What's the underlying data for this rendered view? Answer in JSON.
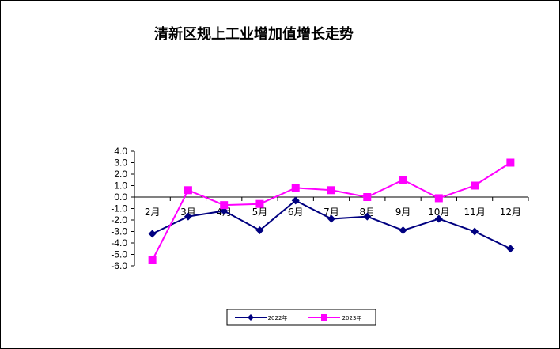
{
  "chart_data": {
    "type": "line",
    "title": "清新区规上工业增加值增长走势",
    "xlabel": "",
    "ylabel": "",
    "categories": [
      "2月",
      "3月",
      "4月",
      "5月",
      "6月",
      "7月",
      "8月",
      "9月",
      "10月",
      "11月",
      "12月"
    ],
    "y_ticks": [
      "4.0",
      "3.0",
      "2.0",
      "1.0",
      "0.0",
      "-1.0",
      "-2.0",
      "-3.0",
      "-4.0",
      "-5.0",
      "-6.0"
    ],
    "ylim": [
      -6.0,
      4.0
    ],
    "grid": false,
    "legend_position": "bottom",
    "series": [
      {
        "name": "2022年",
        "color": "#000080",
        "marker": "diamond",
        "values": [
          -3.2,
          -1.7,
          -1.2,
          -2.9,
          -0.3,
          -1.9,
          -1.7,
          -2.9,
          -1.9,
          -3.0,
          -4.5
        ]
      },
      {
        "name": "2023年",
        "color": "#FF00FF",
        "marker": "square",
        "values": [
          -5.5,
          0.6,
          -0.7,
          -0.6,
          0.8,
          0.6,
          0.0,
          1.5,
          -0.1,
          1.0,
          3.0
        ]
      }
    ]
  }
}
